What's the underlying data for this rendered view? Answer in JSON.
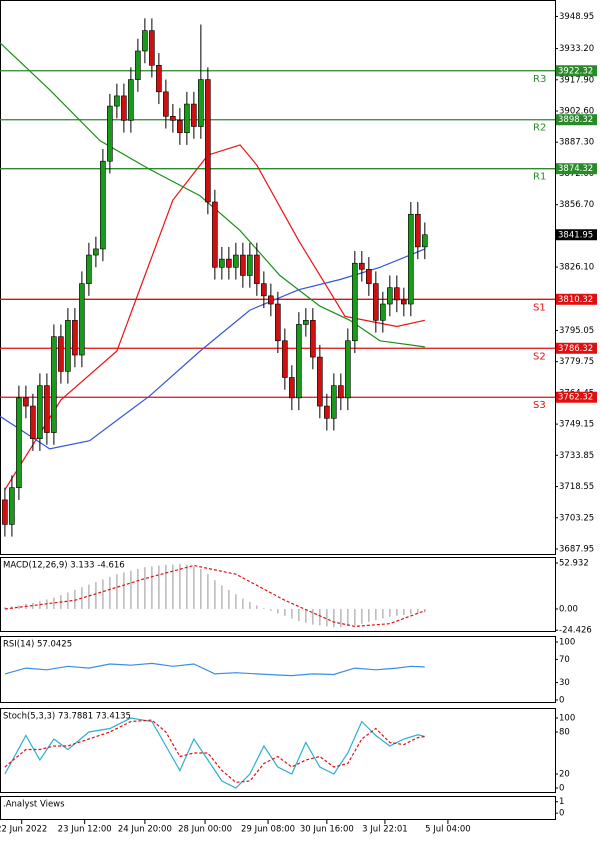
{
  "chart_data": [
    {
      "type": "candlestick",
      "xlim": [
        -0.7,
        78.6
      ],
      "ylim": [
        3685,
        3957
      ],
      "yticks": [
        3948.95,
        {
          "value": 3933.2,
          "label": "3933.20"
        },
        {
          "value": 3917.9,
          "label": "3917.90"
        },
        {
          "value": 3902.6,
          "label": "3902.60"
        },
        {
          "value": 3887.3,
          "label": "3887.30"
        },
        {
          "value": 3872,
          "label": "3872.00"
        },
        {
          "value": 3856.7,
          "label": "3856.70"
        },
        {
          "value": 3841.4,
          "label": "3841.40"
        },
        {
          "value": 3826.1,
          "label": "3826.10"
        },
        {
          "value": 3810.8,
          "label": "3810.80"
        },
        3795.05,
        {
          "value": 3779.75,
          "label": "3779.75"
        },
        3764.45,
        3749.15,
        3733.85,
        3718.55,
        3703.25,
        3687.95
      ],
      "xticks": [
        {
          "value": 2.4,
          "label": "22 Jun 2022"
        },
        {
          "value": 11.4,
          "label": "23 Jun 12:00"
        },
        {
          "value": 20,
          "label": "24 Jun 20:00"
        },
        {
          "value": 28.6,
          "label": "28 Jun 00:00"
        },
        {
          "value": 37.6,
          "label": "29 Jun 08:00"
        },
        {
          "value": 46,
          "label": "30 Jun 16:00"
        },
        {
          "value": 54.3,
          "label": "3 Jul 22:01"
        },
        {
          "value": 63.3,
          "label": "5 Jul 04:00"
        }
      ],
      "up_color": "#1a9a1a",
      "down_color": "#d01010",
      "open": [
        3712,
        3700,
        3718,
        3762,
        3758,
        3742,
        3768,
        3745,
        3792,
        3775,
        3800,
        3783,
        3818,
        3832,
        3835,
        3878,
        3905,
        3910,
        3898,
        3918,
        3932,
        3942,
        3925,
        3912,
        3900,
        3898,
        3892,
        3906,
        3895,
        3918,
        3858,
        3826,
        3830,
        3826,
        3832,
        3822,
        3832,
        3818,
        3812,
        3808,
        3790,
        3772,
        3762,
        3798,
        3800,
        3782,
        3758,
        3752,
        3768,
        3762,
        3790,
        3828,
        3825,
        3818,
        3800,
        3808,
        3816,
        3810,
        3808,
        3852,
        3836
      ],
      "high": [
        3718,
        3724,
        3768,
        3768,
        3764,
        3774,
        3774,
        3798,
        3798,
        3806,
        3806,
        3824,
        3838,
        3841,
        3884,
        3911,
        3916,
        3916,
        3924,
        3938,
        3948,
        3948,
        3931,
        3918,
        3906,
        3904,
        3912,
        3912,
        3945,
        3924,
        3864,
        3836,
        3836,
        3838,
        3838,
        3838,
        3838,
        3824,
        3818,
        3814,
        3796,
        3778,
        3804,
        3806,
        3806,
        3788,
        3764,
        3774,
        3774,
        3796,
        3834,
        3834,
        3831,
        3824,
        3814,
        3822,
        3822,
        3816,
        3858,
        3858,
        3848
      ],
      "low": [
        3694,
        3694,
        3712,
        3752,
        3736,
        3736,
        3739,
        3739,
        3769,
        3769,
        3777,
        3777,
        3812,
        3826,
        3829,
        3872,
        3899,
        3892,
        3892,
        3912,
        3926,
        3919,
        3906,
        3894,
        3892,
        3886,
        3886,
        3889,
        3889,
        3852,
        3820,
        3820,
        3820,
        3820,
        3816,
        3816,
        3812,
        3806,
        3802,
        3784,
        3766,
        3756,
        3756,
        3792,
        3776,
        3752,
        3746,
        3746,
        3756,
        3756,
        3784,
        3819,
        3812,
        3794,
        3794,
        3802,
        3804,
        3802,
        3802,
        3830,
        3830
      ],
      "close": [
        3700,
        3718,
        3762,
        3758,
        3742,
        3768,
        3745,
        3792,
        3775,
        3800,
        3783,
        3818,
        3832,
        3835,
        3878,
        3905,
        3910,
        3898,
        3918,
        3932,
        3942,
        3925,
        3912,
        3900,
        3898,
        3892,
        3906,
        3895,
        3918,
        3858,
        3826,
        3830,
        3826,
        3832,
        3822,
        3832,
        3818,
        3812,
        3808,
        3790,
        3772,
        3762,
        3798,
        3800,
        3782,
        3758,
        3752,
        3768,
        3762,
        3790,
        3828,
        3825,
        3818,
        3800,
        3808,
        3816,
        3810,
        3808,
        3852,
        3836,
        3841.95
      ],
      "series": [
        {
          "color": "#ee1111",
          "x": [
            0,
            8,
            16,
            24,
            29,
            33.6,
            36,
            42,
            48.6,
            53,
            56,
            60
          ],
          "values": [
            3717,
            3761,
            3785,
            3859,
            3881,
            3886,
            3876,
            3839,
            3802,
            3799,
            3797,
            3800
          ]
        },
        {
          "color": "#1a8f1a",
          "x": [
            -0.7,
            6.4,
            13.6,
            20.7,
            27.9,
            33.6,
            39.3,
            45,
            49.3,
            53.6,
            60
          ],
          "values": [
            3936,
            3913,
            3888,
            3874,
            3861,
            3844,
            3822,
            3807,
            3800,
            3790,
            3787
          ]
        },
        {
          "color": "#3355dd",
          "x": [
            -0.7,
            6.4,
            12.1,
            20.7,
            27.9,
            35,
            42,
            47.9,
            53.6,
            57.9,
            60
          ],
          "values": [
            3753,
            3737,
            3741,
            3763,
            3785,
            3805,
            3815,
            3820,
            3826,
            3832,
            3835
          ]
        }
      ],
      "levels": [
        {
          "name": "R3",
          "value": 3922.32,
          "color": "#2a8a2a"
        },
        {
          "name": "R2",
          "value": 3898.32,
          "color": "#2a8a2a"
        },
        {
          "name": "R1",
          "value": 3874.32,
          "color": "#2a8a2a"
        },
        {
          "name": "S1",
          "value": 3810.32,
          "color": "#e01010"
        },
        {
          "name": "S2",
          "value": 3786.32,
          "color": "#e01010"
        },
        {
          "name": "S3",
          "value": 3762.32,
          "color": "#e01010"
        }
      ],
      "last_price": 3841.95
    },
    {
      "type": "macd",
      "title": "MACD(12,26,9) 3.133 -4.616",
      "ylim": [
        -26.5,
        59.8
      ],
      "yticks": [
        52.932,
        {
          "value": 0,
          "label": "0.00"
        },
        -24.426
      ],
      "hist_color": "#b8b8b8",
      "values": [
        2,
        3,
        4,
        6,
        7,
        9,
        11,
        13,
        16,
        19,
        22,
        25,
        28,
        31,
        34,
        37,
        40,
        42,
        44,
        46,
        48,
        49,
        50,
        51,
        51,
        52,
        51,
        49,
        46,
        40,
        33,
        27,
        22,
        17,
        12,
        8,
        4,
        1,
        -2,
        -5,
        -8,
        -11,
        -14,
        -16,
        -18,
        -19,
        -20,
        -21,
        -21,
        -20,
        -19,
        -17,
        -15,
        -13,
        -11,
        -9,
        -8,
        -7,
        -6,
        -5,
        -4
      ],
      "series": [
        {
          "color": "#e01010",
          "dash": true,
          "x": [
            0,
            10,
            20,
            27,
            33,
            40,
            47,
            50,
            55,
            60
          ],
          "values": [
            0,
            10,
            35,
            50,
            40,
            10,
            -15,
            -20,
            -17,
            -2
          ]
        }
      ]
    },
    {
      "type": "line",
      "title": "RSI(14) 57.0425",
      "ylim": [
        -5.2,
        110.3
      ],
      "yticks": [
        100,
        70,
        30,
        0
      ],
      "series": [
        {
          "color": "#3a8ee6",
          "x": [
            0,
            3,
            6,
            9,
            12,
            15,
            18,
            21,
            24,
            27,
            30,
            33,
            36,
            39,
            41,
            44,
            47,
            50,
            53,
            56,
            58,
            60
          ],
          "values": [
            45,
            55,
            52,
            58,
            55,
            62,
            60,
            63,
            58,
            62,
            45,
            47,
            45,
            43,
            42,
            45,
            44,
            55,
            52,
            55,
            58,
            57.0425
          ]
        }
      ]
    },
    {
      "type": "line",
      "title": "Stoch(5,3,3) 73.7881 73.4135",
      "ylim": [
        -7.1,
        114.3
      ],
      "yticks": [
        100,
        80,
        20,
        0
      ],
      "series": [
        {
          "color": "#2ab0d0",
          "x": [
            0,
            3,
            5,
            7,
            9,
            12,
            15,
            18,
            21,
            23,
            25,
            27,
            29,
            31,
            33,
            35,
            37,
            39,
            41,
            43,
            45,
            47,
            49,
            51,
            53,
            55,
            57,
            59,
            60
          ],
          "values": [
            20,
            75,
            40,
            70,
            55,
            80,
            85,
            100,
            95,
            60,
            25,
            70,
            40,
            10,
            0,
            20,
            60,
            30,
            20,
            65,
            30,
            20,
            50,
            95,
            75,
            60,
            70,
            76,
            73.7881
          ]
        },
        {
          "color": "#e01010",
          "dash": true,
          "x": [
            0,
            3,
            5,
            7,
            9,
            12,
            15,
            18,
            21,
            23,
            25,
            27,
            29,
            31,
            33,
            35,
            37,
            39,
            41,
            43,
            45,
            47,
            49,
            51,
            53,
            55,
            57,
            59,
            60
          ],
          "values": [
            30,
            55,
            55,
            60,
            60,
            70,
            80,
            95,
            97,
            80,
            45,
            50,
            50,
            25,
            8,
            10,
            35,
            45,
            30,
            40,
            45,
            30,
            35,
            70,
            85,
            65,
            62,
            72,
            73.4135
          ]
        }
      ]
    },
    {
      "type": "panel",
      "title": ".Analyst Views",
      "ylim": [
        -0.6,
        1.5
      ],
      "yticks": [
        1,
        0
      ]
    }
  ]
}
